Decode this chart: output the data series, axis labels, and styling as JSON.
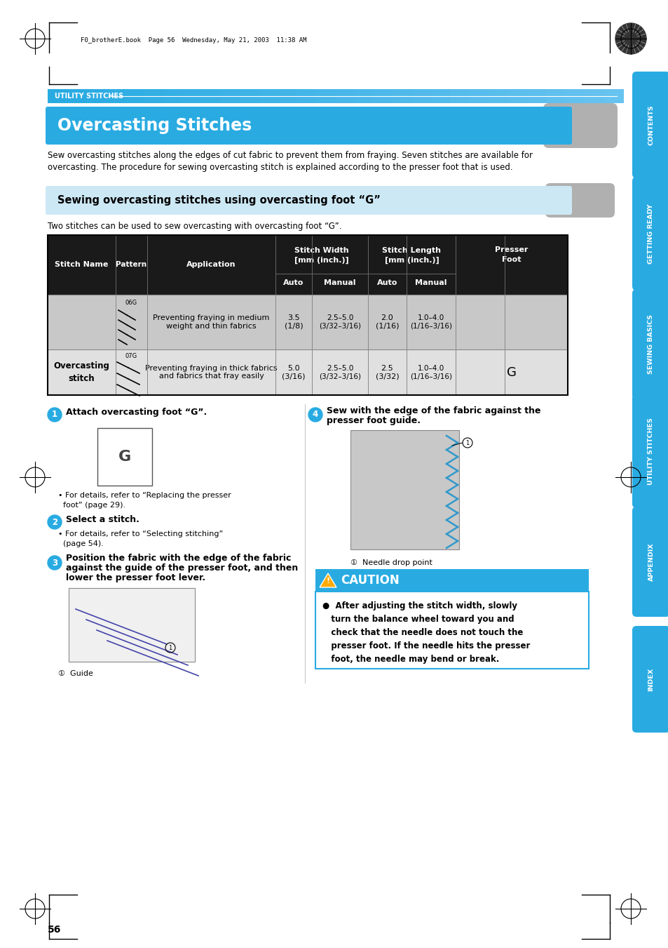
{
  "page_bg": "#ffffff",
  "header_bar_color": "#29abe2",
  "header_bar_gradient_end": "#7dd4f0",
  "header_text": "UTILITY STITCHES",
  "title_bg": "#29abe2",
  "title_text": "Overcasting Stitches",
  "subtitle_bg": "#cce8f5",
  "subtitle_text": "Sewing overcasting stitches using overcasting foot “G”",
  "body_text1_line1": "Sew overcasting stitches along the edges of cut fabric to prevent them from fraying. Seven stitches are available for",
  "body_text1_line2": "overcasting. The procedure for sewing overcasting stitch is explained according to the presser foot that is used.",
  "body_text2": "Two stitches can be used to sew overcasting with overcasting foot “G”.",
  "table_header_bg": "#1a1a1a",
  "table_row1_bg": "#c8c8c8",
  "table_row2_bg": "#e0e0e0",
  "table_border": "#000000",
  "step1_title": "Attach overcasting foot “G”.",
  "step1_sub": "For details, refer to “Replacing the presser\nfoot” (page 29).",
  "step2_title": "Select a stitch.",
  "step2_sub": "For details, refer to “Selecting stitching”\n(page 54).",
  "step3_title": "Position the fabric with the edge of the fabric\nagainst the guide of the presser foot, and then\nlower the presser foot lever.",
  "step3_label": "Guide",
  "step4_title": "Sew with the edge of the fabric against the\npresser foot guide.",
  "step4_label": "Needle drop point",
  "caution_header_bg": "#29abe2",
  "caution_body_border": "#29abe2",
  "caution_body_bg": "#ffffff",
  "caution_title": "CAUTION",
  "caution_text": "After adjusting the stitch width, slowly\nturn the balance wheel toward you and\ncheck that the needle does not touch the\npresser foot. If the needle hits the presser\nfoot, the needle may bend or break.",
  "sidebar_labels": [
    "CONTENTS",
    "GETTING READY",
    "SEWING BASICS",
    "UTILITY STITCHES",
    "APPENDIX",
    "INDEX"
  ],
  "sidebar_color": "#29abe2",
  "sidebar_positions_top": [
    108,
    258,
    418,
    568,
    728,
    898
  ],
  "sidebar_heights": [
    140,
    150,
    145,
    150,
    145,
    140
  ],
  "page_number": "56",
  "file_header": "F0_brotherE.book  Page 56  Wednesday, May 21, 2003  11:38 AM",
  "step_circle_color": "#29abe2",
  "step_circle_r": 10
}
